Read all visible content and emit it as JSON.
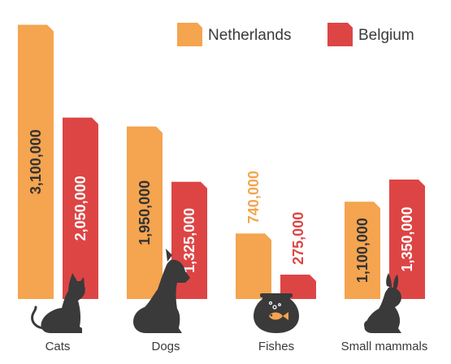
{
  "chart_data": {
    "type": "bar",
    "categories": [
      "Cats",
      "Dogs",
      "Fishes",
      "Small mammals"
    ],
    "series": [
      {
        "name": "Netherlands",
        "color": "#f5a44f",
        "values": [
          3100000,
          1950000,
          740000,
          1100000
        ],
        "labels": [
          "3,100,000",
          "1,950,000",
          "740,000",
          "1,100,000"
        ]
      },
      {
        "name": "Belgium",
        "color": "#dd4545",
        "values": [
          2050000,
          1325000,
          275000,
          1350000
        ],
        "labels": [
          "2,050,000",
          "1,325,000",
          "275,000",
          "1,350,000"
        ]
      }
    ],
    "ylim": [
      0,
      3150000
    ],
    "grid": false,
    "legend": "top-right",
    "icons": [
      "cat-icon",
      "dog-icon",
      "fishbowl-icon",
      "rabbit-icon"
    ],
    "colors": {
      "icon": "#3a3a3a",
      "text": "#3a3a3a",
      "inside_label": "#333333",
      "inside_label_belgium": "#ffffff"
    }
  }
}
